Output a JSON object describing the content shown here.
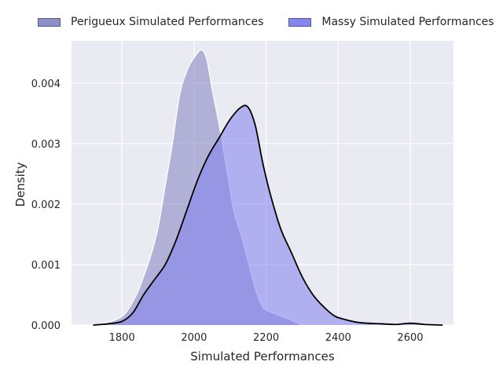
{
  "chart_data": {
    "type": "area",
    "title": "",
    "xlabel": "Simulated Performances",
    "ylabel": "Density",
    "xlim": [
      1660,
      2720
    ],
    "ylim": [
      0,
      0.0047
    ],
    "xticks": [
      1800,
      2000,
      2200,
      2400,
      2600
    ],
    "yticks": [
      0.0,
      0.001,
      0.002,
      0.003,
      0.004
    ],
    "ytick_labels": [
      "0.000",
      "0.001",
      "0.002",
      "0.003",
      "0.004"
    ],
    "grid": true,
    "legend_position": "top",
    "series": [
      {
        "name": "Perigueux Simulated Performances",
        "fill_color": "#8a8ac5",
        "line_color": "#ffffff",
        "points": [
          [
            1700,
            0.0
          ],
          [
            1740,
            2e-05
          ],
          [
            1780,
            8e-05
          ],
          [
            1810,
            0.0002
          ],
          [
            1840,
            0.0005
          ],
          [
            1860,
            0.0008
          ],
          [
            1880,
            0.00115
          ],
          [
            1900,
            0.0016
          ],
          [
            1920,
            0.0023
          ],
          [
            1940,
            0.003
          ],
          [
            1960,
            0.0038
          ],
          [
            1980,
            0.0042
          ],
          [
            2000,
            0.00442
          ],
          [
            2020,
            0.00455
          ],
          [
            2035,
            0.0044
          ],
          [
            2050,
            0.0039
          ],
          [
            2070,
            0.0033
          ],
          [
            2090,
            0.0026
          ],
          [
            2110,
            0.0019
          ],
          [
            2130,
            0.0015
          ],
          [
            2150,
            0.00105
          ],
          [
            2170,
            0.0006
          ],
          [
            2190,
            0.0003
          ],
          [
            2210,
            0.00022
          ],
          [
            2240,
            0.00015
          ],
          [
            2270,
            8e-05
          ],
          [
            2300,
            0.0
          ]
        ]
      },
      {
        "name": "Massy Simulated Performances",
        "fill_color": "#8080f0",
        "line_color": "#000000",
        "points": [
          [
            1720,
            0.0
          ],
          [
            1760,
            2e-05
          ],
          [
            1800,
            6e-05
          ],
          [
            1830,
            0.0002
          ],
          [
            1860,
            0.0005
          ],
          [
            1890,
            0.00075
          ],
          [
            1920,
            0.001
          ],
          [
            1950,
            0.0014
          ],
          [
            1980,
            0.0019
          ],
          [
            2010,
            0.0024
          ],
          [
            2040,
            0.0028
          ],
          [
            2070,
            0.0031
          ],
          [
            2100,
            0.0034
          ],
          [
            2130,
            0.0036
          ],
          [
            2150,
            0.0036
          ],
          [
            2170,
            0.0033
          ],
          [
            2190,
            0.0027
          ],
          [
            2210,
            0.0022
          ],
          [
            2240,
            0.0016
          ],
          [
            2270,
            0.0012
          ],
          [
            2300,
            0.0008
          ],
          [
            2330,
            0.0005
          ],
          [
            2360,
            0.0003
          ],
          [
            2390,
            0.00015
          ],
          [
            2420,
            9e-05
          ],
          [
            2460,
            4e-05
          ],
          [
            2520,
            2e-05
          ],
          [
            2560,
            1e-05
          ],
          [
            2600,
            3e-05
          ],
          [
            2640,
            1e-05
          ],
          [
            2690,
            0.0
          ]
        ]
      }
    ]
  }
}
